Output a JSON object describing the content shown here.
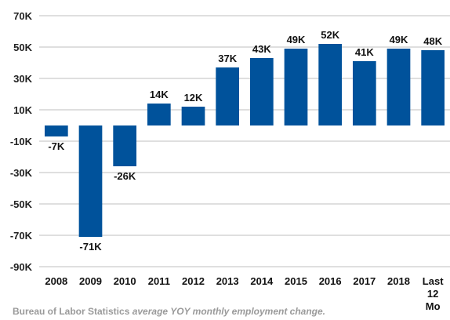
{
  "chart_data": {
    "type": "bar",
    "categories": [
      "2008",
      "2009",
      "2010",
      "2011",
      "2012",
      "2013",
      "2014",
      "2015",
      "2016",
      "2017",
      "2018",
      "Last 12 Mo"
    ],
    "values": [
      -7,
      -71,
      -26,
      14,
      12,
      37,
      43,
      49,
      52,
      41,
      49,
      48
    ],
    "data_labels": [
      "-7K",
      "-71K",
      "-26K",
      "14K",
      "12K",
      "37K",
      "43K",
      "49K",
      "52K",
      "41K",
      "49K",
      "48K"
    ],
    "yticks": [
      70,
      50,
      30,
      10,
      -10,
      -30,
      -50,
      -70,
      -90
    ],
    "ytick_labels": [
      "70K",
      "50K",
      "30K",
      "10K",
      "-10K",
      "-30K",
      "-50K",
      "-70K",
      "-90K"
    ],
    "ylim": [
      -90,
      70
    ],
    "title": "",
    "xlabel": "",
    "ylabel": "",
    "grid": true,
    "bar_color": "#00529b"
  },
  "caption": {
    "text_start": "Bureau of Labor Statistics ",
    "text_em": "average YOY monthly employment change."
  }
}
